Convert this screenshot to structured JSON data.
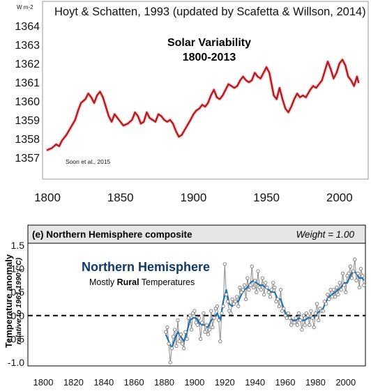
{
  "chart_data": [
    {
      "type": "line",
      "title": "Hoyt & Schatten, 1993 (updated by Scafetta & Willson, 2014)",
      "ylabel": "W m-2",
      "inset_title_line1": "Solar Variability",
      "inset_title_line2": "1800-2013",
      "credit": "Soon et al., 2015",
      "color": "#b01c23",
      "xlim": [
        1800,
        2013
      ],
      "ylim": [
        1357,
        1364.5
      ],
      "x_ticks": [
        1800,
        1850,
        1900,
        1950,
        2000
      ],
      "y_ticks": [
        1357,
        1358,
        1359,
        1360,
        1361,
        1362,
        1363,
        1364
      ],
      "grid": false,
      "series": [
        {
          "x": [
            1800,
            1803,
            1806,
            1808,
            1810,
            1813,
            1816,
            1819,
            1821,
            1823,
            1826,
            1828,
            1830,
            1832,
            1834,
            1836,
            1838,
            1840,
            1842,
            1844,
            1846,
            1848,
            1850,
            1852,
            1855,
            1858,
            1860,
            1862,
            1864,
            1866,
            1868,
            1870,
            1872,
            1874,
            1876,
            1878,
            1880,
            1882,
            1884,
            1886,
            1888,
            1890,
            1892,
            1895,
            1898,
            1900,
            1902,
            1904,
            1906,
            1908,
            1910,
            1912,
            1914,
            1916,
            1918,
            1920,
            1922,
            1924,
            1926,
            1928,
            1930,
            1932,
            1934,
            1936,
            1938,
            1940,
            1942,
            1944,
            1946,
            1948,
            1950,
            1952,
            1954,
            1955,
            1957,
            1959,
            1961,
            1963,
            1965,
            1967,
            1969,
            1971,
            1973,
            1975,
            1977,
            1980,
            1982,
            1984,
            1986,
            1988,
            1990,
            1992,
            1994,
            1996,
            1998,
            2000,
            2002,
            2004,
            2006,
            2008,
            2010,
            2012,
            2013
          ],
          "y": [
            1357.4,
            1357.5,
            1357.7,
            1357.6,
            1357.9,
            1358.2,
            1358.6,
            1359.0,
            1359.5,
            1359.9,
            1360.1,
            1360.4,
            1360.2,
            1359.9,
            1360.3,
            1360.5,
            1360.2,
            1359.7,
            1359.2,
            1358.9,
            1359.3,
            1359.1,
            1358.9,
            1358.7,
            1358.8,
            1359.0,
            1359.4,
            1359.2,
            1358.8,
            1358.9,
            1359.4,
            1359.1,
            1359.0,
            1358.9,
            1359.3,
            1359.2,
            1359.0,
            1358.9,
            1359.0,
            1358.8,
            1358.4,
            1358.1,
            1358.2,
            1358.6,
            1359.0,
            1359.3,
            1359.5,
            1359.6,
            1359.8,
            1359.7,
            1359.9,
            1360.3,
            1360.6,
            1360.2,
            1360.1,
            1360.3,
            1360.6,
            1360.9,
            1360.8,
            1360.7,
            1360.8,
            1361.1,
            1361.3,
            1361.1,
            1361.0,
            1361.1,
            1361.5,
            1361.3,
            1361.2,
            1361.5,
            1361.8,
            1361.5,
            1360.7,
            1360.3,
            1360.1,
            1360.7,
            1360.1,
            1359.6,
            1359.4,
            1359.7,
            1360.1,
            1360.4,
            1360.2,
            1360.3,
            1360.2,
            1360.6,
            1360.8,
            1360.7,
            1360.9,
            1361.1,
            1361.6,
            1362.1,
            1361.7,
            1361.2,
            1361.5,
            1362.0,
            1362.2,
            1361.9,
            1361.3,
            1361.1,
            1360.8,
            1361.3,
            1361.0
          ]
        }
      ]
    },
    {
      "type": "line",
      "title": "(e) Northern Hemisphere composite",
      "weight_label": "Weight = 1.00",
      "ylabel": "Temperature anomaly",
      "ylabel_sub": "relative to 1961-1990 (°C)",
      "inset_title": "Northern Hemisphere",
      "inset_subtitle_pre": "Mostly ",
      "inset_subtitle_bold": "Rural",
      "inset_subtitle_post": " Temperatures",
      "color": "#1f6fb2",
      "xlim": [
        1800,
        2013
      ],
      "ylim": [
        -1.05,
        1.5
      ],
      "x_ticks": [
        1800,
        1820,
        1840,
        1860,
        1880,
        1900,
        1920,
        1940,
        1960,
        1980,
        2000
      ],
      "y_ticks": [
        "1.5",
        "1.0",
        "0.5",
        "0.0",
        "-0.5",
        "-1.0"
      ],
      "y_tick_values": [
        1.5,
        1.0,
        0.5,
        0.0,
        -0.5,
        -1.0
      ],
      "reference_line": 0,
      "grid": false,
      "series": [
        {
          "name": "annual",
          "x": [
            1881,
            1882,
            1883,
            1884,
            1885,
            1886,
            1887,
            1888,
            1889,
            1890,
            1891,
            1892,
            1893,
            1894,
            1895,
            1896,
            1897,
            1898,
            1899,
            1900,
            1901,
            1902,
            1903,
            1904,
            1905,
            1906,
            1907,
            1908,
            1909,
            1910,
            1911,
            1912,
            1913,
            1914,
            1915,
            1916,
            1917,
            1918,
            1919,
            1920,
            1921,
            1922,
            1923,
            1924,
            1925,
            1926,
            1927,
            1928,
            1929,
            1930,
            1931,
            1932,
            1933,
            1934,
            1935,
            1936,
            1937,
            1938,
            1939,
            1940,
            1941,
            1942,
            1943,
            1944,
            1945,
            1946,
            1947,
            1948,
            1949,
            1950,
            1951,
            1952,
            1953,
            1954,
            1955,
            1956,
            1957,
            1958,
            1959,
            1960,
            1961,
            1962,
            1963,
            1964,
            1965,
            1966,
            1967,
            1968,
            1969,
            1970,
            1971,
            1972,
            1973,
            1974,
            1975,
            1976,
            1977,
            1978,
            1979,
            1980,
            1981,
            1982,
            1983,
            1984,
            1985,
            1986,
            1987,
            1988,
            1989,
            1990,
            1991,
            1992,
            1993,
            1994,
            1995,
            1996,
            1997,
            1998,
            1999,
            2000,
            2001,
            2002,
            2003,
            2004,
            2005,
            2006,
            2007,
            2008,
            2009,
            2010,
            2011,
            2012
          ],
          "y": [
            -0.35,
            -0.25,
            -0.6,
            -1.0,
            -0.7,
            -0.45,
            -0.3,
            -0.65,
            -0.1,
            -0.55,
            -0.4,
            -0.6,
            -0.7,
            -0.35,
            -0.5,
            -0.05,
            0.0,
            -0.3,
            0.05,
            0.1,
            -0.15,
            -0.2,
            -0.05,
            -0.5,
            -0.15,
            0.05,
            -0.35,
            -0.2,
            -0.4,
            -0.3,
            0.1,
            -0.25,
            -0.05,
            0.15,
            0.2,
            -0.1,
            -0.55,
            0.05,
            0.2,
            1.1,
            0.45,
            0.3,
            0.1,
            0.05,
            0.35,
            0.25,
            0.3,
            0.4,
            0.2,
            0.6,
            0.5,
            0.55,
            0.65,
            0.35,
            0.8,
            0.55,
            0.65,
            1.05,
            0.6,
            0.75,
            0.5,
            0.95,
            0.6,
            0.55,
            0.8,
            0.45,
            0.7,
            0.6,
            0.5,
            0.4,
            0.55,
            0.7,
            0.6,
            0.3,
            0.35,
            0.2,
            0.55,
            0.1,
            0.15,
            0.0,
            -0.05,
            0.05,
            -0.05,
            -0.2,
            -0.15,
            -0.15,
            -0.05,
            -0.2,
            0.05,
            -0.1,
            -0.3,
            0.0,
            -0.2,
            0.05,
            0.0,
            -0.2,
            0.1,
            -0.05,
            -0.25,
            0.05,
            0.25,
            -0.1,
            0.15,
            0.1,
            0.1,
            0.3,
            0.25,
            0.45,
            0.35,
            0.55,
            0.4,
            0.55,
            0.4,
            0.6,
            0.45,
            0.7,
            0.55,
            0.9,
            0.65,
            0.5,
            0.85,
            0.9,
            1.05,
            0.8,
            0.95,
            1.2,
            0.75,
            0.9,
            0.6,
            1.0,
            0.85,
            0.65
          ]
        },
        {
          "name": "smoothed",
          "x": [
            1881,
            1883,
            1885,
            1887,
            1889,
            1891,
            1893,
            1895,
            1897,
            1899,
            1901,
            1903,
            1905,
            1907,
            1909,
            1911,
            1913,
            1915,
            1917,
            1919,
            1921,
            1923,
            1925,
            1927,
            1929,
            1931,
            1933,
            1935,
            1937,
            1939,
            1941,
            1943,
            1945,
            1947,
            1949,
            1951,
            1953,
            1955,
            1957,
            1959,
            1961,
            1963,
            1965,
            1967,
            1969,
            1971,
            1973,
            1975,
            1977,
            1979,
            1981,
            1983,
            1985,
            1987,
            1989,
            1991,
            1993,
            1995,
            1997,
            1999,
            2001,
            2003,
            2005,
            2007,
            2009,
            2011,
            2012
          ],
          "y": [
            -0.4,
            -0.55,
            -0.7,
            -0.5,
            -0.35,
            -0.45,
            -0.55,
            -0.35,
            -0.1,
            -0.05,
            -0.05,
            -0.15,
            -0.2,
            -0.2,
            -0.25,
            -0.1,
            -0.05,
            0.05,
            -0.1,
            0.3,
            0.55,
            0.25,
            0.2,
            0.3,
            0.3,
            0.45,
            0.55,
            0.6,
            0.7,
            0.75,
            0.7,
            0.65,
            0.65,
            0.6,
            0.55,
            0.5,
            0.5,
            0.35,
            0.35,
            0.15,
            0.0,
            -0.05,
            -0.1,
            -0.1,
            -0.05,
            -0.1,
            -0.1,
            -0.05,
            -0.05,
            -0.05,
            0.05,
            0.1,
            0.15,
            0.3,
            0.4,
            0.45,
            0.5,
            0.55,
            0.6,
            0.7,
            0.7,
            0.85,
            0.95,
            0.9,
            0.8,
            0.8,
            0.75
          ]
        }
      ]
    }
  ]
}
